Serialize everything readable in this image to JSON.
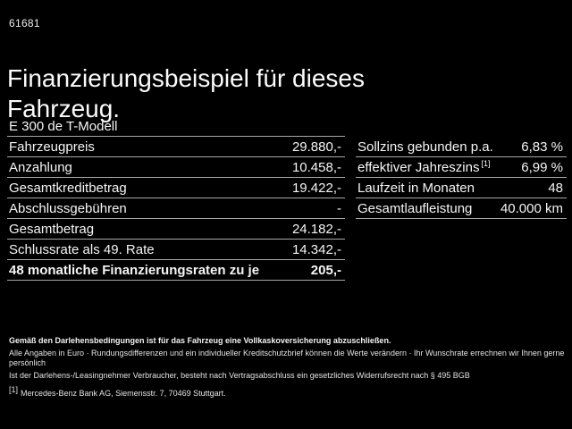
{
  "page": {
    "vehicle_id": "61681",
    "title": "Finanzierungsbeispiel für dieses Fahrzeug.",
    "model": "E 300 de T-Modell"
  },
  "finance_table": {
    "rows": [
      {
        "label": "Fahrzeugpreis",
        "value": "29.880,-"
      },
      {
        "label": "Anzahlung",
        "value": "10.458,-"
      },
      {
        "label": "Gesamtkreditbetrag",
        "value": "19.422,-"
      },
      {
        "label": "Abschlussgebühren",
        "value": "-"
      },
      {
        "label": "Gesamtbetrag",
        "value": "24.182,-"
      },
      {
        "label": "Schlussrate als 49. Rate",
        "value": "14.342,-"
      },
      {
        "label": "48 monatliche Finanzierungsraten zu je",
        "value": "205,-"
      }
    ]
  },
  "conditions_table": {
    "rows": [
      {
        "label": "Sollzins gebunden p.a.",
        "value": "6,83 %"
      },
      {
        "label": "effektiver Jahreszins",
        "marker": "[1]",
        "value": "6,99 %"
      },
      {
        "label": "Laufzeit in Monaten",
        "value": "48"
      },
      {
        "label": "Gesamtlaufleistung",
        "value": "40.000 km"
      }
    ]
  },
  "footnotes": {
    "insurance": "Gemäß den Darlehensbedingungen ist für das Fahrzeug eine Vollkaskoversicherung abzuschließen.",
    "disclaimer": "Alle Angaben in Euro · Rundungsdifferenzen und ein individueller Kreditschutzbrief können die Werte verändern · Ihr Wunschrate errechnen wir Ihnen gerne persönlich",
    "withdrawal": "Ist der Darlehens-/Leasingnehmer Verbraucher, besteht nach Vertragsabschluss ein gesetzliches Widerrufsrecht nach § 495 BGB",
    "bank_marker": "[1]",
    "bank": "Mercedes-Benz Bank AG, Siemensstr. 7, 70469 Stuttgart."
  },
  "colors": {
    "background": "#000000",
    "text": "#f5f5f5",
    "divider": "#a8a8a8"
  }
}
